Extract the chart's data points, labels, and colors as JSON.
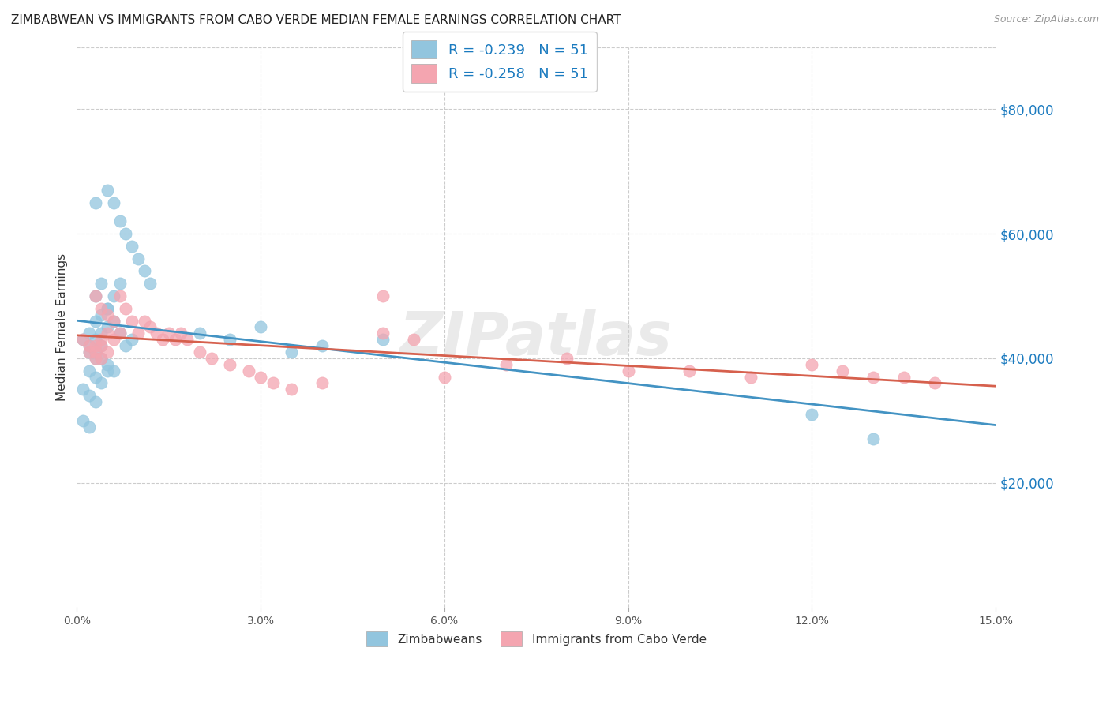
{
  "title": "ZIMBABWEAN VS IMMIGRANTS FROM CABO VERDE MEDIAN FEMALE EARNINGS CORRELATION CHART",
  "source": "Source: ZipAtlas.com",
  "ylabel": "Median Female Earnings",
  "right_ytick_values": [
    20000,
    40000,
    60000,
    80000
  ],
  "right_ytick_labels": [
    "$20,000",
    "$40,000",
    "$60,000",
    "$80,000"
  ],
  "xlim": [
    0.0,
    0.15
  ],
  "ylim": [
    0,
    90000
  ],
  "blue_color": "#92c5de",
  "pink_color": "#f4a5b0",
  "blue_line_color": "#4393c3",
  "pink_line_color": "#d6604d",
  "legend_r_blue": "R = -0.239",
  "legend_n_blue": "N = 51",
  "legend_r_pink": "R = -0.258",
  "legend_n_pink": "N = 51",
  "legend_label_blue": "Zimbabweans",
  "legend_label_pink": "Immigrants from Cabo Verde",
  "watermark": "ZIPatlas",
  "blue_x": [
    0.003,
    0.005,
    0.006,
    0.007,
    0.008,
    0.009,
    0.01,
    0.011,
    0.012,
    0.003,
    0.004,
    0.005,
    0.006,
    0.007,
    0.003,
    0.004,
    0.005,
    0.002,
    0.003,
    0.004,
    0.005,
    0.006,
    0.007,
    0.008,
    0.009,
    0.002,
    0.003,
    0.004,
    0.002,
    0.003,
    0.004,
    0.005,
    0.001,
    0.002,
    0.003,
    0.004,
    0.005,
    0.006,
    0.001,
    0.002,
    0.003,
    0.001,
    0.002,
    0.02,
    0.025,
    0.03,
    0.035,
    0.04,
    0.05,
    0.12,
    0.13
  ],
  "blue_y": [
    65000,
    67000,
    65000,
    62000,
    60000,
    58000,
    56000,
    54000,
    52000,
    50000,
    52000,
    48000,
    50000,
    52000,
    46000,
    47000,
    48000,
    44000,
    43000,
    44000,
    45000,
    46000,
    44000,
    42000,
    43000,
    41000,
    40000,
    42000,
    38000,
    37000,
    36000,
    38000,
    43000,
    42000,
    41000,
    40000,
    39000,
    38000,
    35000,
    34000,
    33000,
    30000,
    29000,
    44000,
    43000,
    45000,
    41000,
    42000,
    43000,
    31000,
    27000
  ],
  "pink_x": [
    0.003,
    0.004,
    0.005,
    0.006,
    0.007,
    0.008,
    0.009,
    0.01,
    0.011,
    0.012,
    0.013,
    0.014,
    0.015,
    0.016,
    0.017,
    0.018,
    0.003,
    0.004,
    0.005,
    0.006,
    0.007,
    0.002,
    0.003,
    0.004,
    0.005,
    0.001,
    0.002,
    0.003,
    0.004,
    0.02,
    0.022,
    0.025,
    0.028,
    0.03,
    0.032,
    0.035,
    0.04,
    0.05,
    0.055,
    0.06,
    0.07,
    0.08,
    0.09,
    0.1,
    0.11,
    0.12,
    0.125,
    0.13,
    0.135,
    0.14,
    0.05
  ],
  "pink_y": [
    50000,
    48000,
    47000,
    46000,
    50000,
    48000,
    46000,
    44000,
    46000,
    45000,
    44000,
    43000,
    44000,
    43000,
    44000,
    43000,
    42000,
    43000,
    44000,
    43000,
    44000,
    41000,
    40000,
    42000,
    41000,
    43000,
    42000,
    41000,
    40000,
    41000,
    40000,
    39000,
    38000,
    37000,
    36000,
    35000,
    36000,
    44000,
    43000,
    37000,
    39000,
    40000,
    38000,
    38000,
    37000,
    39000,
    38000,
    37000,
    37000,
    36000,
    50000
  ]
}
